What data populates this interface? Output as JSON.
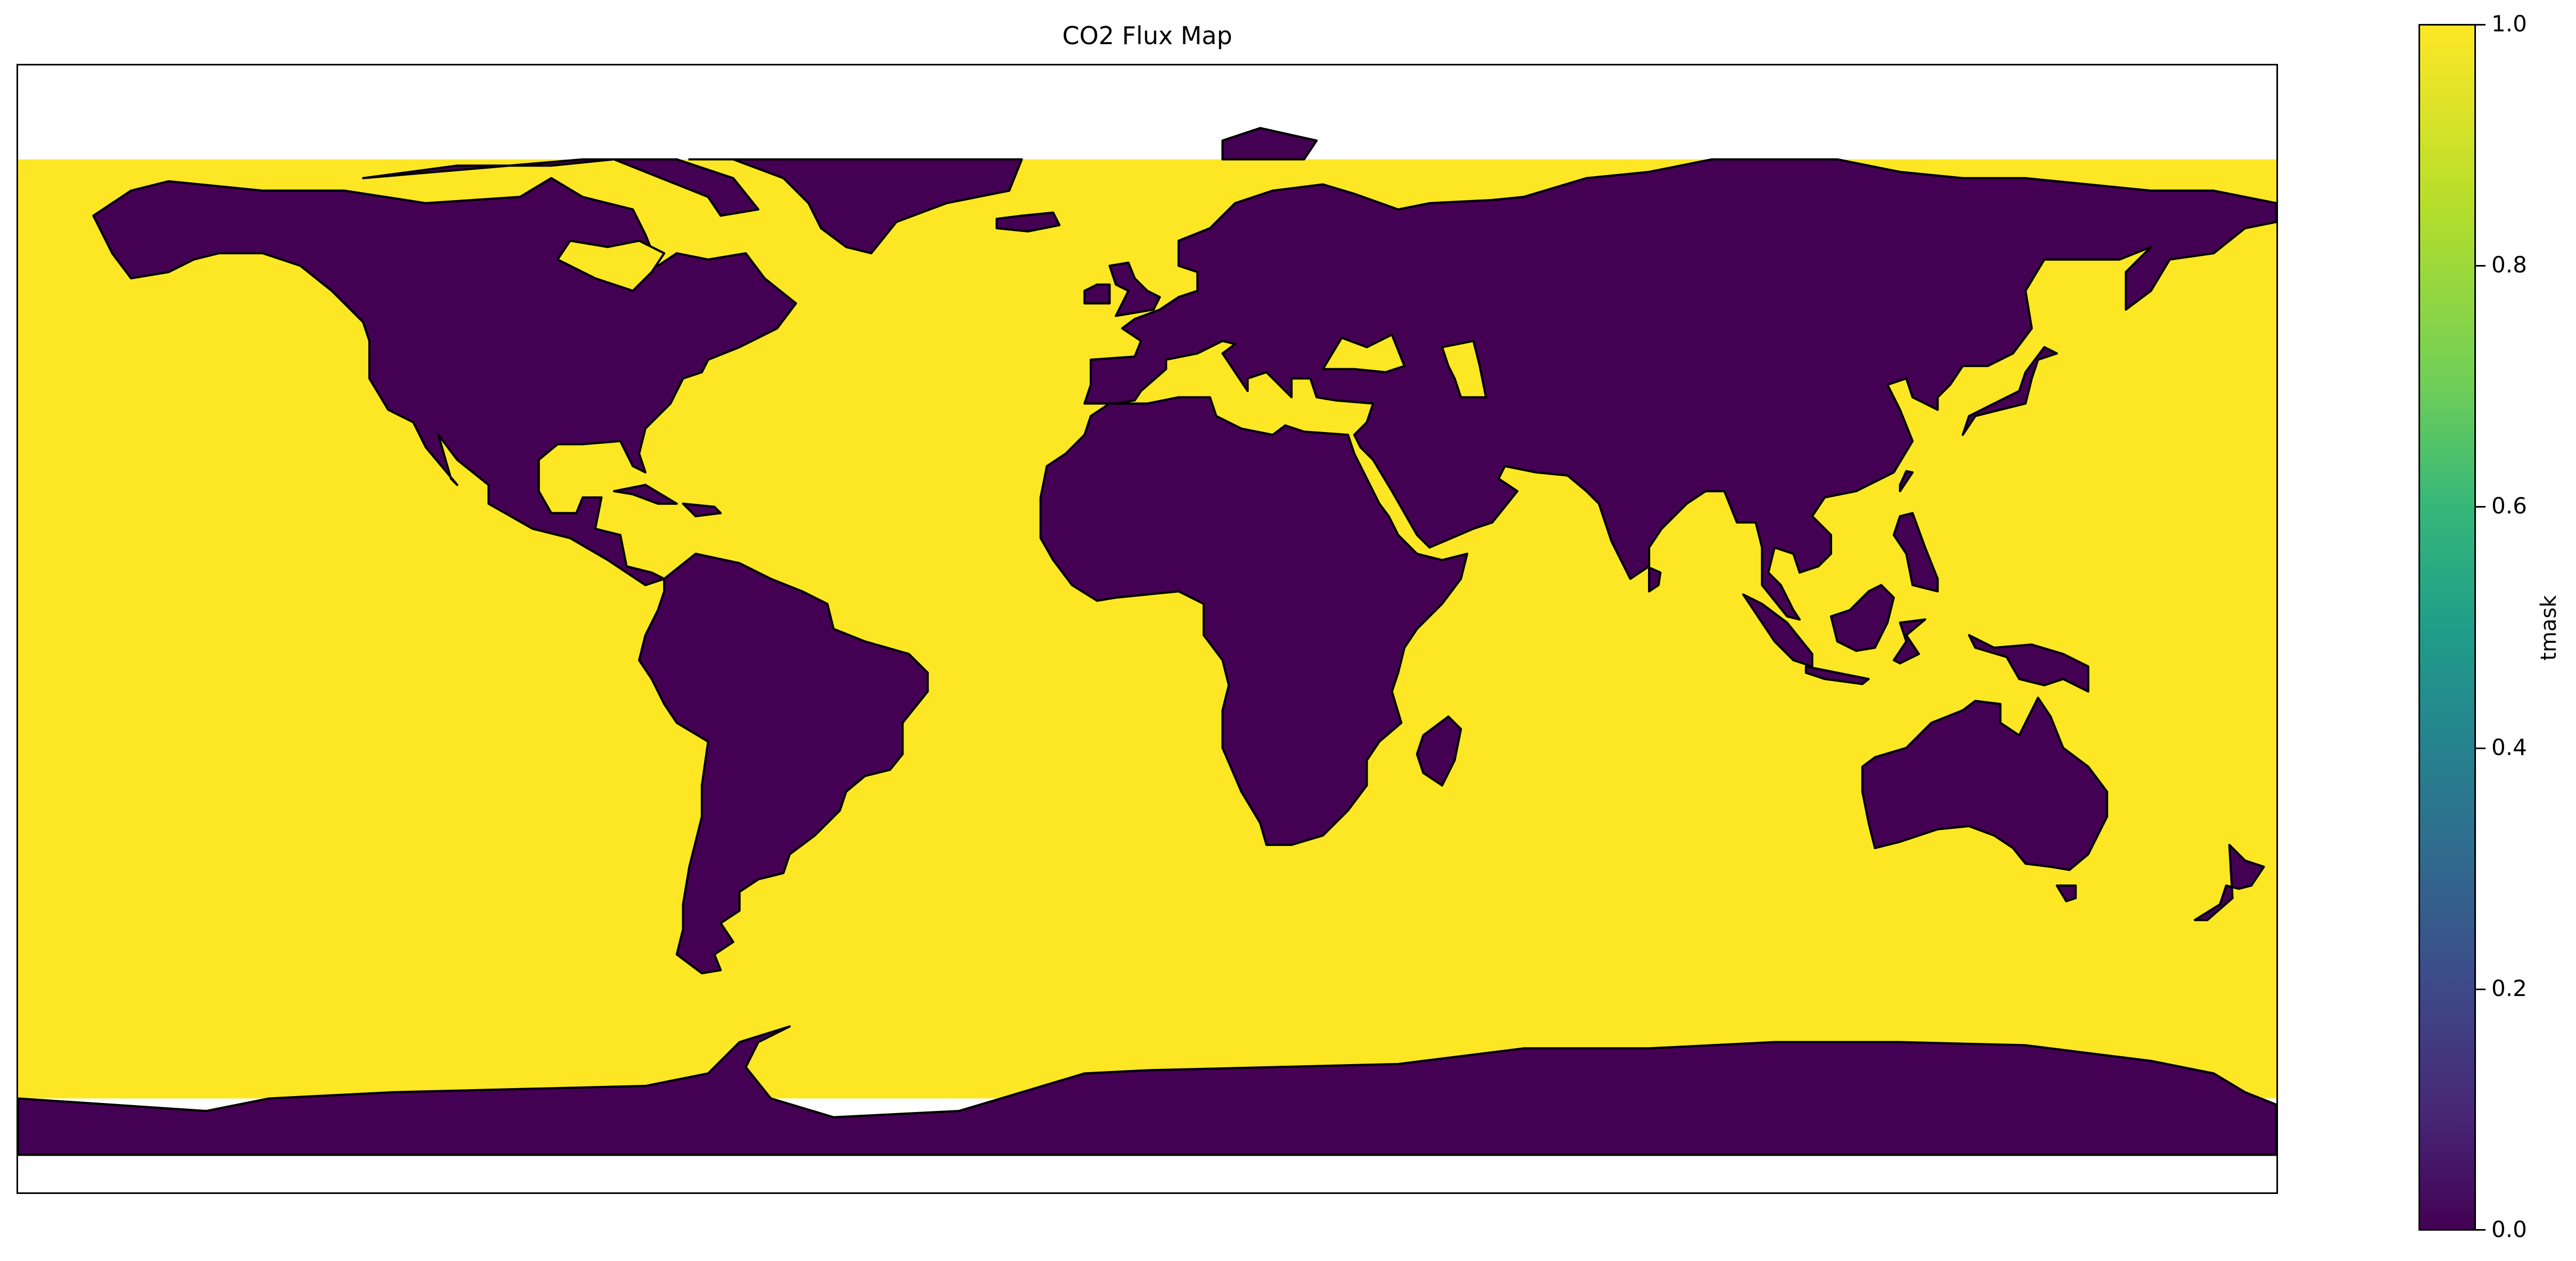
{
  "map": {
    "title": "CO2 Flux Map",
    "projection": "PlateCarree",
    "extent_lon": [
      -180,
      180
    ],
    "extent_lat": [
      -90,
      90
    ],
    "data_lat_range": [
      -75,
      75
    ],
    "variable": "tmask",
    "ocean_value": 1.0,
    "land_value": 0.0,
    "coastlines": true,
    "colors": {
      "ocean": "#fde725",
      "land": "#440154",
      "coastline": "#000000",
      "background": "#ffffff"
    }
  },
  "colorbar": {
    "label": "tmask",
    "colormap": "viridis",
    "ticks": [
      "0.0",
      "0.2",
      "0.4",
      "0.6",
      "0.8",
      "1.0"
    ],
    "range": [
      0.0,
      1.0
    ]
  }
}
